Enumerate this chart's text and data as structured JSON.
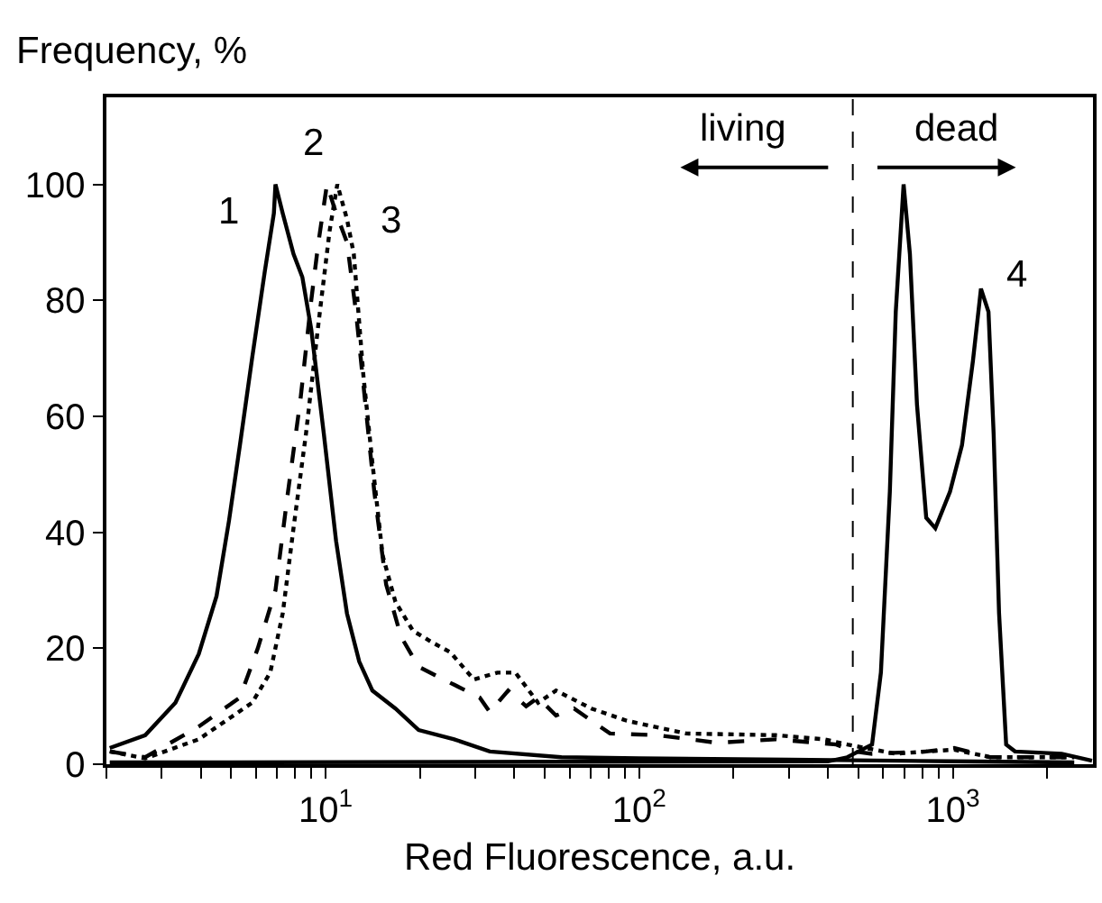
{
  "chart_data": {
    "type": "line",
    "ylabel": "Frequency, %",
    "xlabel": "Red Fluorescence, a.u.",
    "log": "x",
    "legend": false,
    "marker": "none",
    "xlim": [
      2,
      2800
    ],
    "ylim": [
      0,
      115
    ],
    "xticks": [
      {
        "value": 2,
        "label": null
      },
      {
        "value": 3,
        "label": null
      },
      {
        "value": 4,
        "label": null
      },
      {
        "value": 5,
        "label": null
      },
      {
        "value": 6,
        "label": null
      },
      {
        "value": 7,
        "label": null
      },
      {
        "value": 8,
        "label": null
      },
      {
        "value": 9,
        "label": null
      },
      {
        "value": 10,
        "label": "10$^{1}$"
      },
      {
        "value": 20,
        "label": null
      },
      {
        "value": 30,
        "label": null
      },
      {
        "value": 40,
        "label": null
      },
      {
        "value": 50,
        "label": null
      },
      {
        "value": 60,
        "label": null
      },
      {
        "value": 70,
        "label": null
      },
      {
        "value": 80,
        "label": null
      },
      {
        "value": 90,
        "label": null
      },
      {
        "value": 100,
        "label": "10$^{2}$"
      },
      {
        "value": 200,
        "label": null
      },
      {
        "value": 300,
        "label": null
      },
      {
        "value": 400,
        "label": null
      },
      {
        "value": 500,
        "label": null
      },
      {
        "value": 600,
        "label": null
      },
      {
        "value": 700,
        "label": null
      },
      {
        "value": 800,
        "label": null
      },
      {
        "value": 900,
        "label": null
      },
      {
        "value": 1000,
        "label": "10$^{3}$"
      },
      {
        "value": 2000,
        "label": null
      }
    ],
    "yticks": [
      0,
      20,
      40,
      60,
      80,
      100
    ],
    "series": [
      {
        "name": "1",
        "color": "#000000",
        "line_style": "solid",
        "x": [
          2.05,
          2.66,
          3.32,
          3.94,
          4.49,
          4.92,
          5.33,
          5.83,
          6.4,
          6.84,
          6.92,
          7.3,
          7.9,
          8.43,
          9.0,
          9.87,
          10.8,
          11.7,
          12.8,
          14.1,
          16.7,
          19.8,
          25.7,
          33.4,
          56.5,
          100,
          300,
          1000,
          2440
        ],
        "values": [
          2.8,
          5,
          10.6,
          19,
          29,
          42,
          55,
          70,
          85,
          95,
          100,
          95,
          88,
          84,
          75,
          57,
          38.5,
          26,
          17.7,
          12.7,
          9.6,
          5.9,
          4.3,
          2.2,
          1.2,
          1,
          0.8,
          0.5,
          0.3
        ]
      },
      {
        "name": "2",
        "color": "#000000",
        "line_style": "dashed",
        "x": [
          2.05,
          2.66,
          3.94,
          5.33,
          6.08,
          6.92,
          7.59,
          8.32,
          9.0,
          9.49,
          10.1,
          10.8,
          11.7,
          12.5,
          13.4,
          14.3,
          15.6,
          17.4,
          19.8,
          23.8,
          25.7,
          31.0,
          33.4,
          38.2,
          43.6,
          47.6,
          54.3,
          62.0,
          80.7,
          115,
          177,
          273,
          425,
          486,
          553,
          823,
          1010,
          1320,
          2440
        ],
        "values": [
          2.2,
          1.2,
          6.5,
          11.5,
          20,
          30,
          47,
          63,
          80,
          90,
          100,
          95,
          90,
          78,
          62,
          47,
          31,
          22,
          16.8,
          14.6,
          13.7,
          11.5,
          9,
          12.7,
          10,
          11.5,
          8.4,
          9.6,
          5.3,
          5,
          3.7,
          4.3,
          3.4,
          2.2,
          1.8,
          2.2,
          2.8,
          1.2,
          1.2
        ]
      },
      {
        "name": "3",
        "color": "#000000",
        "line_style": "dotted",
        "x": [
          2.05,
          2.66,
          3.94,
          5.83,
          6.66,
          7.3,
          7.9,
          8.66,
          9.49,
          10.3,
          10.9,
          11.7,
          12.3,
          13.2,
          14.1,
          15.2,
          16.7,
          19.0,
          21.9,
          25.0,
          29.7,
          35.3,
          40.3,
          47.6,
          54.3,
          70.4,
          91.3,
          141,
          273,
          389,
          461,
          658,
          823,
          1010,
          1320,
          2440
        ],
        "values": [
          2.2,
          1,
          4.3,
          10.6,
          15.8,
          26,
          40.7,
          57,
          76,
          92,
          100,
          94,
          88,
          67,
          52,
          36,
          28,
          23,
          21,
          19.3,
          14.6,
          15.8,
          15.8,
          10.6,
          12.7,
          9.6,
          7.5,
          5.3,
          5,
          4.3,
          3.4,
          1.8,
          2.2,
          2.5,
          1.2,
          1.2
        ]
      },
      {
        "name": "4",
        "color": "#000000",
        "line_style": "solid",
        "x": [
          2.05,
          400,
          461,
          553,
          590,
          630,
          658,
          697,
          730,
          769,
          823,
          880,
          980,
          1070,
          1160,
          1230,
          1300,
          1350,
          1405,
          1480,
          1580,
          2225,
          2780
        ],
        "values": [
          0.3,
          0.5,
          1.2,
          3.4,
          15.8,
          47,
          78,
          100,
          88,
          62,
          42.5,
          40.7,
          47,
          55,
          69.6,
          82,
          78,
          57,
          26,
          3.4,
          2.2,
          1.8,
          0.6
        ]
      }
    ],
    "ref_lines": [
      {
        "axis": "x",
        "value": 480,
        "color": "#000000",
        "line_style": "dashed"
      }
    ],
    "annotations": [
      "living",
      "dead"
    ]
  }
}
